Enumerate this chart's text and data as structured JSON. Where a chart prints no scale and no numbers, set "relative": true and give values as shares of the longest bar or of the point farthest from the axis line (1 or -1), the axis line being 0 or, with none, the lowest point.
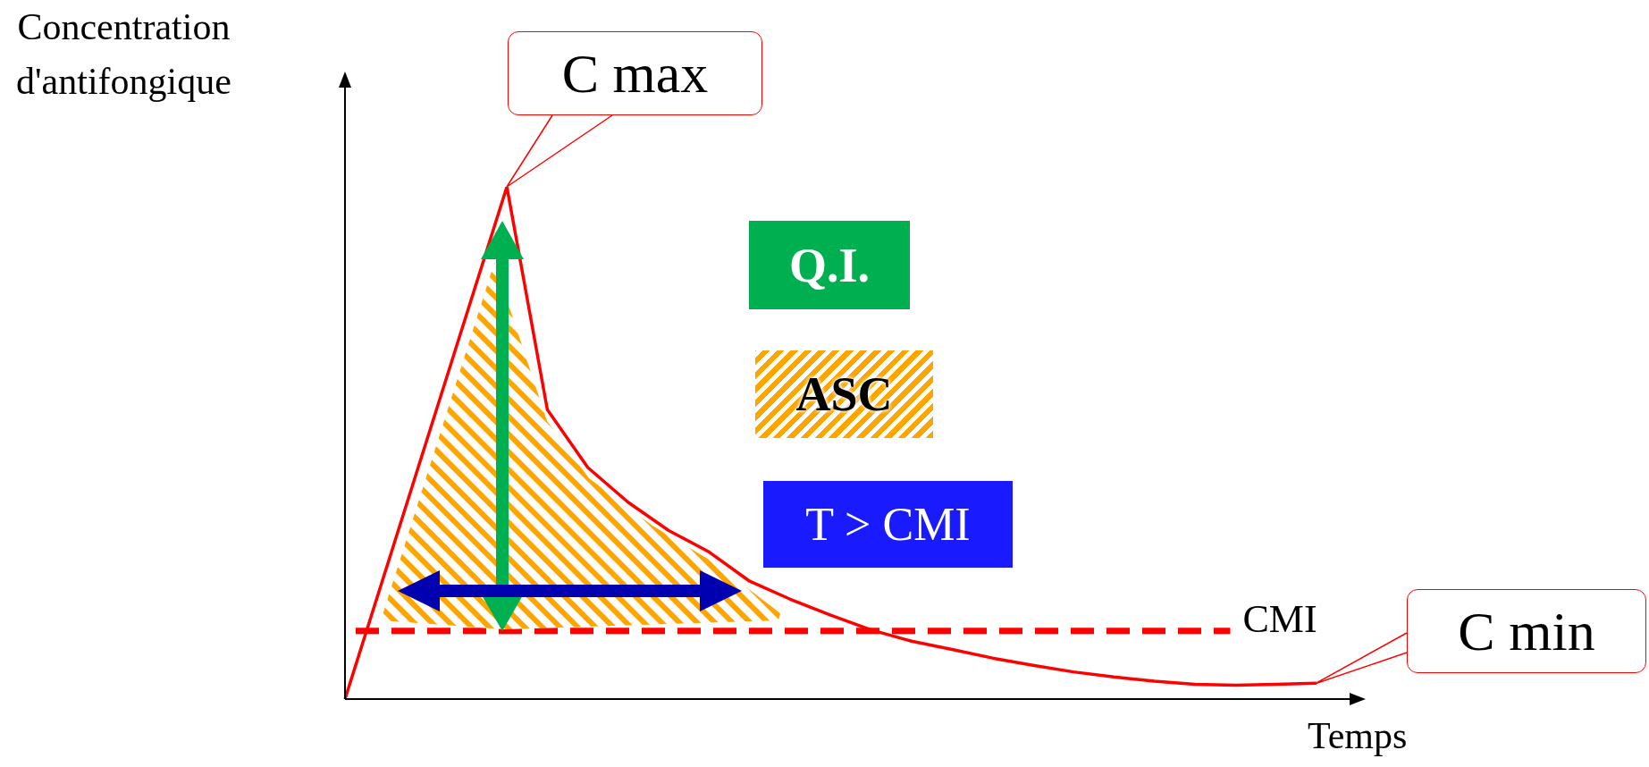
{
  "chart_data": {
    "type": "line",
    "relative": true,
    "ylabel": "Concentration\nd'antifongique",
    "xlabel": "Temps",
    "marker": "none",
    "categories": [
      null,
      null,
      null,
      null,
      null,
      null,
      null,
      null,
      null,
      null,
      null,
      null,
      null,
      null,
      null,
      null,
      null,
      null,
      null,
      null,
      null,
      null,
      null,
      null,
      null,
      null
    ],
    "series": [
      {
        "color": "#ff0000",
        "values": [
          0,
          0.25,
          0.5,
          0.75,
          1,
          0.565,
          0.452,
          0.384,
          0.329,
          0.287,
          0.23,
          0.195,
          0.164,
          0.135,
          0.113,
          0.097,
          0.08,
          0.066,
          0.053,
          0.043,
          0.035,
          0.029,
          0.027,
          0.029,
          0.031,
          null
        ]
      }
    ],
    "ref_lines": [
      {
        "axis": "y",
        "value": 0.133,
        "label": "CMI",
        "color": "#ff0000",
        "line_style": "dashed"
      }
    ],
    "annotations": [
      "C max",
      "C min",
      "Q.I.",
      "ASC",
      "T > CMI"
    ]
  }
}
